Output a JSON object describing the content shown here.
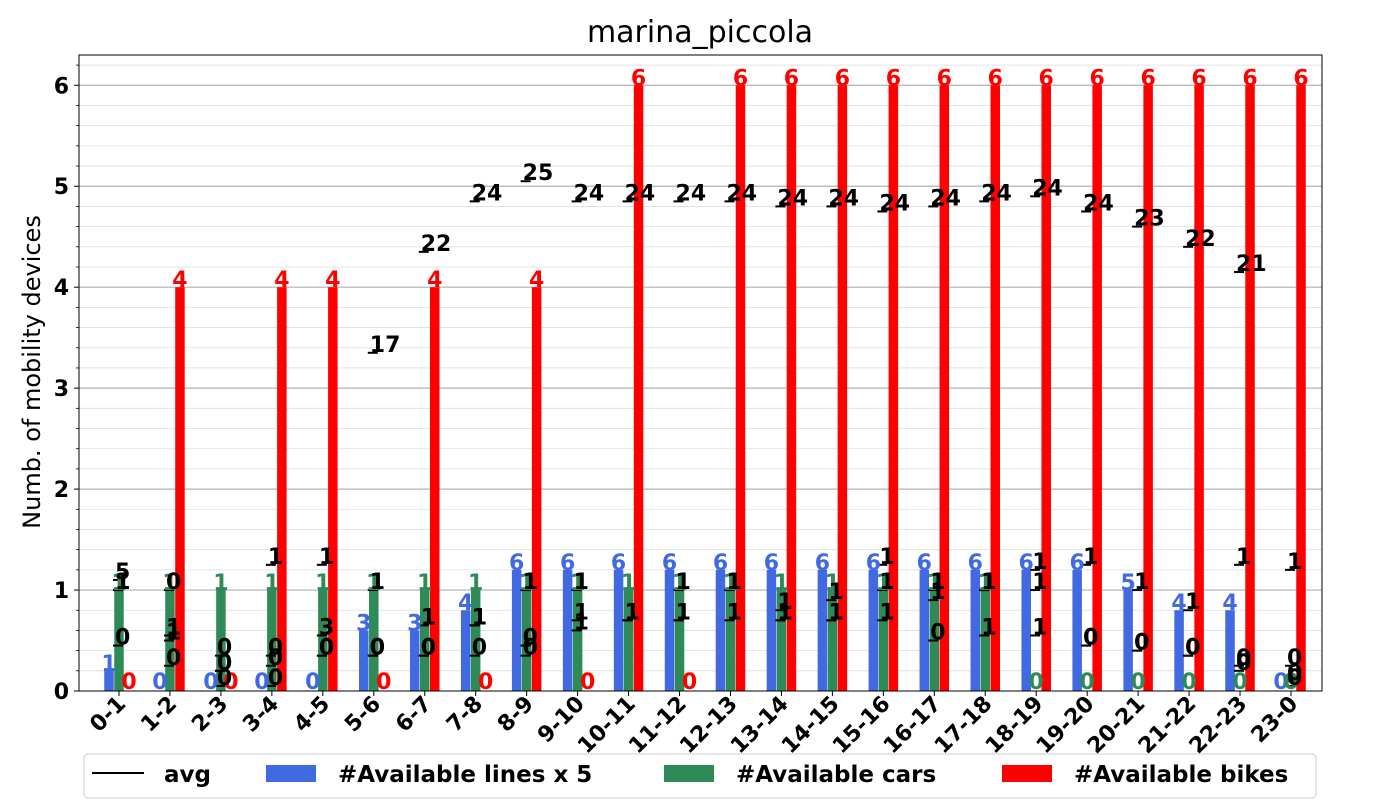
{
  "chart_data": {
    "type": "bar",
    "title": "marina_piccola",
    "ylabel": "Numb. of mobility devices",
    "xlabel": "",
    "ylim": [
      0,
      6.3
    ],
    "yticks": [
      "0",
      "1",
      "2",
      "3",
      "4",
      "5",
      "6"
    ],
    "grid": true,
    "legend_placement": "bottom",
    "categories": [
      "0-1",
      "1-2",
      "2-3",
      "3-4",
      "4-5",
      "5-6",
      "6-7",
      "7-8",
      "8-9",
      "9-10",
      "10-11",
      "11-12",
      "12-13",
      "13-14",
      "14-15",
      "15-16",
      "16-17",
      "17-18",
      "18-19",
      "19-20",
      "20-21",
      "21-22",
      "22-23",
      "23-0"
    ],
    "series": [
      {
        "name": "#Available lines x 5",
        "color": "#4169e1",
        "values": [
          0.2,
          0,
          0,
          0,
          0,
          0.6,
          0.6,
          0.8,
          1.2,
          1.2,
          1.2,
          1.2,
          1.2,
          1.2,
          1.2,
          1.2,
          1.2,
          1.2,
          1.2,
          1.2,
          1.0,
          0.8,
          0.8,
          0
        ],
        "labels": [
          "1",
          "0",
          "0",
          "0",
          "0",
          "3",
          "3",
          "4",
          "6",
          "6",
          "6",
          "6",
          "6",
          "6",
          "6",
          "6",
          "6",
          "6",
          "6",
          "6",
          "5",
          "4",
          "4",
          "0"
        ]
      },
      {
        "name": "#Available cars",
        "color": "#2e8b57",
        "values": [
          1,
          1,
          1,
          1,
          1,
          1,
          1,
          1,
          1,
          1,
          1,
          1,
          1,
          1,
          1,
          1,
          1,
          1,
          0,
          0,
          0,
          0,
          0,
          0
        ],
        "labels": [
          "1",
          "1",
          "1",
          "1",
          "1",
          "1",
          "1",
          "1",
          "1",
          "1",
          "1",
          "1",
          "1",
          "1",
          "1",
          "1",
          "1",
          "1",
          "0",
          "0",
          "0",
          "0",
          "0",
          "0"
        ]
      },
      {
        "name": "#Available bikes",
        "color": "#ff0000",
        "values": [
          0,
          4,
          0,
          4,
          4,
          0,
          4,
          0,
          4,
          0,
          6,
          0,
          6,
          6,
          6,
          6,
          6,
          6,
          6,
          6,
          6,
          6,
          6,
          6
        ],
        "labels": [
          "0",
          "4",
          "0",
          "4",
          "4",
          "0",
          "4",
          "0",
          "4",
          "0",
          "6",
          "0",
          "6",
          "6",
          "6",
          "6",
          "6",
          "6",
          "6",
          "6",
          "6",
          "6",
          "6",
          "6"
        ]
      }
    ],
    "avg_series": {
      "name": "avg",
      "color": "#000000",
      "lines": [
        [
          1.1,
          0.5,
          0.05,
          0.05,
          0.55,
          0.35,
          0.35,
          0.35,
          0.45,
          0.6,
          0.7,
          0.7,
          0.7,
          0.7,
          0.7,
          0.7,
          0.5,
          0.55,
          0.55,
          0.45,
          0.4,
          0.35,
          0.25,
          0.05
        ],
        [
          1.0,
          1.0,
          0.35,
          1.25,
          1.25,
          1.0,
          0.65,
          0.65,
          1.0,
          1.0,
          0.7,
          1.0,
          1.0,
          0.8,
          0.9,
          1.0,
          0.9,
          1.0,
          1.0,
          1.25,
          1.0,
          0.8,
          1.25,
          1.2
        ],
        [
          0.45,
          0.25,
          0.2,
          0.35,
          0.35,
          3.35,
          0.35,
          0.65,
          0.35,
          0.7,
          0.7,
          0.7,
          1.0,
          0.7,
          0.7,
          1.25,
          1.0,
          1.0,
          1.2,
          0.45,
          0.4,
          0.35,
          0.2,
          0.25
        ],
        [
          1.0,
          0.55,
          0.2,
          0.25,
          0.35,
          0.35,
          4.35,
          4.85,
          5.05,
          4.85,
          4.85,
          4.85,
          4.85,
          4.8,
          4.8,
          4.75,
          4.8,
          4.85,
          4.9,
          4.75,
          4.6,
          4.4,
          4.15,
          0.1
        ]
      ],
      "labels": [
        [
          "5",
          "1",
          "0",
          "0",
          "3",
          "0",
          "0",
          "0",
          "0",
          "1",
          "1",
          "1",
          "1",
          "1",
          "1",
          "1",
          "0",
          "1",
          "1",
          "0",
          "0",
          "0",
          "0",
          "0"
        ],
        [
          "1",
          "0",
          "0",
          "1",
          "1",
          "1",
          "1",
          "1",
          "1",
          "1",
          "1",
          "1",
          "1",
          "1",
          "1",
          "1",
          "1",
          "1",
          "1",
          "1",
          "1",
          "1",
          "1",
          "1"
        ],
        [
          "0",
          "0",
          "0",
          "0",
          "0",
          "17",
          "0",
          "1",
          "0",
          "1",
          "1",
          "1",
          "1",
          "1",
          "1",
          "1",
          "1",
          "1",
          "1",
          "0",
          "0",
          "0",
          "0",
          "0"
        ],
        [
          "1",
          "1",
          "0",
          "0",
          "0",
          "0",
          "22",
          "24",
          "25",
          "24",
          "24",
          "24",
          "24",
          "24",
          "24",
          "24",
          "24",
          "24",
          "24",
          "24",
          "23",
          "22",
          "21",
          "0"
        ]
      ]
    },
    "legend": [
      "avg",
      "#Available lines x 5",
      "#Available cars",
      "#Available bikes"
    ]
  }
}
